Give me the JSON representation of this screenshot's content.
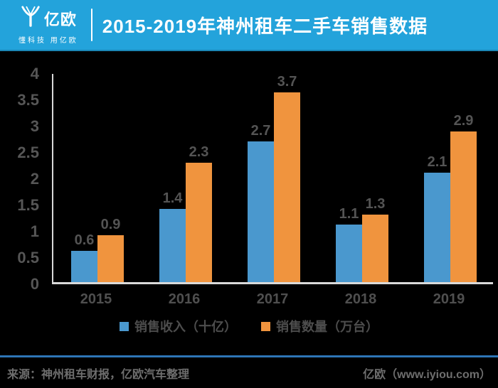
{
  "header": {
    "logo_name": "亿欧",
    "logo_tagline": "懂科技 用亿欧",
    "title": "2015-2019年神州租车二手车销售数据"
  },
  "chart_data": {
    "type": "bar",
    "title": "2015-2019年神州租车二手车销售数据",
    "categories": [
      "2015",
      "2016",
      "2017",
      "2018",
      "2019"
    ],
    "series": [
      {
        "name": "销售收入（十亿）",
        "color": "#4a98ce",
        "values": [
          0.6,
          1.4,
          2.7,
          1.1,
          2.1
        ]
      },
      {
        "name": "销售数量（万台）",
        "color": "#f0943e",
        "values": [
          0.9,
          2.3,
          3.7,
          1.3,
          2.9
        ]
      }
    ],
    "ylim": [
      0,
      4
    ],
    "yticks": [
      "4",
      "3.5",
      "3",
      "2.5",
      "2",
      "1.5",
      "1",
      "0.5",
      "0"
    ],
    "grid": false,
    "legend_position": "bottom",
    "plot_background": "#000000",
    "axis_color": "#d9d9d9",
    "label_color": "#545454"
  },
  "footer": {
    "source": "来源：神州租车财报，亿欧汽车整理",
    "site": "亿欧（www.iyiou.com）"
  },
  "colors": {
    "header_bg": "#23a3db",
    "divider_blue": "#2e75b6",
    "bar_blue": "#4a98ce",
    "bar_orange": "#f0943e"
  }
}
